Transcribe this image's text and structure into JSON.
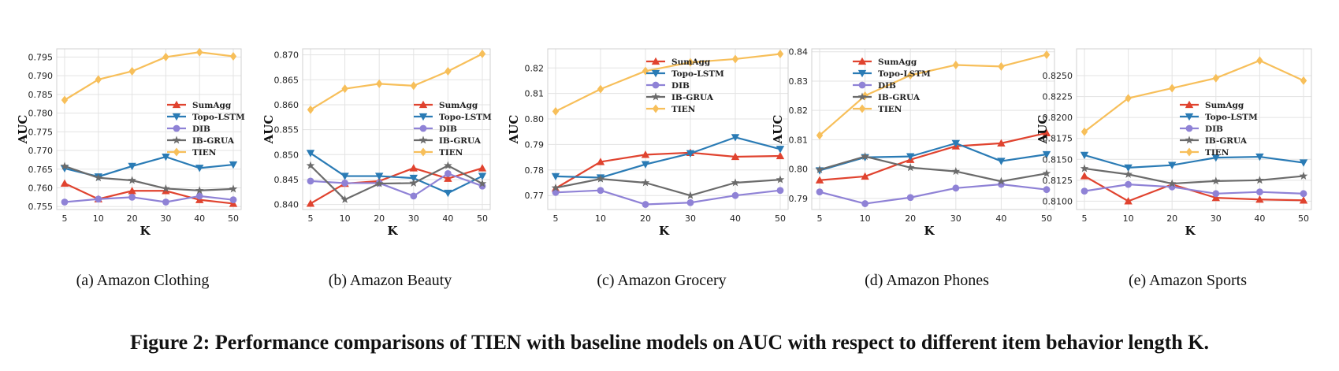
{
  "figure_caption": "Figure 2: Performance comparisons of TIEN with baseline models on AUC with respect to different item behavior length K.",
  "colors": {
    "SumAgg": "#e0432f",
    "Topo-LSTM": "#2a7bb5",
    "DIB": "#8f82d6",
    "IB-GRUA": "#6b6b6b",
    "TIEN": "#f7bf5a"
  },
  "legend_labels": [
    "SumAgg",
    "Topo-LSTM",
    "DIB",
    "IB-GRUA",
    "TIEN"
  ],
  "chart_data": [
    {
      "type": "line",
      "subcaption": "(a)  Amazon Clothing",
      "xlabel": "K",
      "ylabel": "AUC",
      "x": [
        5,
        10,
        20,
        30,
        40,
        50
      ],
      "x_ticks": [
        "5",
        "10",
        "20",
        "30",
        "40",
        "50"
      ],
      "ylim": [
        0.7542,
        0.7972
      ],
      "y_ticks": [
        "0.755",
        "0.760",
        "0.765",
        "0.770",
        "0.775",
        "0.780",
        "0.785",
        "0.790",
        "0.795"
      ],
      "y_tick_values": [
        0.755,
        0.76,
        0.765,
        0.77,
        0.775,
        0.78,
        0.785,
        0.79,
        0.795
      ],
      "legend_position": "center-right",
      "series": [
        {
          "name": "SumAgg",
          "marker": "triangle-up",
          "values": [
            0.7612,
            0.757,
            0.7592,
            0.7592,
            0.7568,
            0.7558
          ]
        },
        {
          "name": "Topo-LSTM",
          "marker": "triangle-down",
          "values": [
            0.7652,
            0.763,
            0.7658,
            0.7683,
            0.7653,
            0.7662
          ]
        },
        {
          "name": "DIB",
          "marker": "circle",
          "values": [
            0.7562,
            0.757,
            0.7575,
            0.7562,
            0.7578,
            0.7568
          ]
        },
        {
          "name": "IB-GRUA",
          "marker": "star",
          "values": [
            0.7658,
            0.7627,
            0.762,
            0.7598,
            0.7593,
            0.7597
          ]
        },
        {
          "name": "TIEN",
          "marker": "diamond",
          "values": [
            0.7835,
            0.789,
            0.7912,
            0.795,
            0.7963,
            0.7952
          ]
        }
      ]
    },
    {
      "type": "line",
      "subcaption": "(b)  Amazon Beauty",
      "xlabel": "K",
      "ylabel": "AUC",
      "x": [
        5,
        10,
        20,
        30,
        40,
        50
      ],
      "x_ticks": [
        "5",
        "10",
        "20",
        "30",
        "40",
        "50"
      ],
      "ylim": [
        0.839,
        0.8712
      ],
      "y_ticks": [
        "0.840",
        "0.845",
        "0.850",
        "0.855",
        "0.860",
        "0.865",
        "0.870"
      ],
      "y_tick_values": [
        0.84,
        0.845,
        0.85,
        0.855,
        0.86,
        0.865,
        0.87
      ],
      "legend_position": "center-right",
      "series": [
        {
          "name": "SumAgg",
          "marker": "triangle-up",
          "values": [
            0.8402,
            0.8442,
            0.8447,
            0.8473,
            0.8452,
            0.8473
          ]
        },
        {
          "name": "Topo-LSTM",
          "marker": "triangle-down",
          "values": [
            0.8503,
            0.8457,
            0.8457,
            0.8453,
            0.8423,
            0.8457
          ]
        },
        {
          "name": "DIB",
          "marker": "circle",
          "values": [
            0.8447,
            0.8443,
            0.8443,
            0.8417,
            0.8462,
            0.8437
          ]
        },
        {
          "name": "IB-GRUA",
          "marker": "star",
          "values": [
            0.8478,
            0.841,
            0.8442,
            0.8443,
            0.8478,
            0.8442
          ]
        },
        {
          "name": "TIEN",
          "marker": "diamond",
          "values": [
            0.859,
            0.8632,
            0.8642,
            0.8638,
            0.8667,
            0.8702
          ]
        }
      ]
    },
    {
      "type": "line",
      "subcaption": "(c)  Amazon Grocery",
      "xlabel": "K",
      "ylabel": "AUC",
      "x": [
        5,
        10,
        20,
        30,
        40,
        50
      ],
      "x_ticks": [
        "5",
        "10",
        "20",
        "30",
        "40",
        "50"
      ],
      "ylim": [
        0.7645,
        0.8275
      ],
      "y_ticks": [
        "0.77",
        "0.78",
        "0.79",
        "0.80",
        "0.81",
        "0.82"
      ],
      "y_tick_values": [
        0.77,
        0.78,
        0.79,
        0.8,
        0.81,
        0.82
      ],
      "legend_position": "top-center",
      "series": [
        {
          "name": "SumAgg",
          "marker": "triangle-up",
          "values": [
            0.7728,
            0.7832,
            0.786,
            0.7868,
            0.7852,
            0.7855
          ]
        },
        {
          "name": "Topo-LSTM",
          "marker": "triangle-down",
          "values": [
            0.7775,
            0.777,
            0.7822,
            0.7865,
            0.7928,
            0.7882
          ]
        },
        {
          "name": "DIB",
          "marker": "circle",
          "values": [
            0.7712,
            0.772,
            0.7665,
            0.7672,
            0.77,
            0.772
          ]
        },
        {
          "name": "IB-GRUA",
          "marker": "star",
          "values": [
            0.773,
            0.7765,
            0.775,
            0.77,
            0.775,
            0.7762
          ]
        },
        {
          "name": "TIEN",
          "marker": "diamond",
          "values": [
            0.803,
            0.8117,
            0.8188,
            0.8222,
            0.8235,
            0.8255
          ]
        }
      ]
    },
    {
      "type": "line",
      "subcaption": "(d)  Amazon Phones",
      "xlabel": "K",
      "ylabel": "AUC",
      "x": [
        5,
        10,
        20,
        30,
        40,
        50
      ],
      "x_ticks": [
        "5",
        "10",
        "20",
        "30",
        "40",
        "50"
      ],
      "ylim": [
        0.7862,
        0.841
      ],
      "y_ticks": [
        "0.79",
        "0.80",
        "0.81",
        "0.82",
        "0.83",
        "0.84"
      ],
      "y_tick_values": [
        0.79,
        0.8,
        0.81,
        0.82,
        0.83,
        0.84
      ],
      "legend_position": "top-left",
      "series": [
        {
          "name": "SumAgg",
          "marker": "triangle-up",
          "values": [
            0.7962,
            0.7975,
            0.8032,
            0.8078,
            0.8088,
            0.8123
          ]
        },
        {
          "name": "Topo-LSTM",
          "marker": "triangle-down",
          "values": [
            0.7995,
            0.804,
            0.8043,
            0.8088,
            0.8027,
            0.805
          ]
        },
        {
          "name": "DIB",
          "marker": "circle",
          "values": [
            0.7922,
            0.7882,
            0.7903,
            0.7935,
            0.7948,
            0.793
          ]
        },
        {
          "name": "IB-GRUA",
          "marker": "star",
          "values": [
            0.7998,
            0.8043,
            0.8005,
            0.7992,
            0.7958,
            0.7985
          ]
        },
        {
          "name": "TIEN",
          "marker": "diamond",
          "values": [
            0.8115,
            0.825,
            0.832,
            0.8355,
            0.835,
            0.839
          ]
        }
      ]
    },
    {
      "type": "line",
      "subcaption": "(e)  Amazon Sports",
      "xlabel": "K",
      "ylabel": "AUC",
      "x": [
        5,
        10,
        20,
        30,
        40,
        50
      ],
      "x_ticks": [
        "5",
        "10",
        "20",
        "30",
        "40",
        "50"
      ],
      "ylim": [
        0.809,
        0.8282
      ],
      "y_ticks": [
        "0.8100",
        "0.8125",
        "0.8150",
        "0.8175",
        "0.8200",
        "0.8225",
        "0.8250"
      ],
      "y_tick_values": [
        0.81,
        0.8125,
        0.815,
        0.8175,
        0.82,
        0.8225,
        0.825
      ],
      "legend_position": "center-left",
      "series": [
        {
          "name": "SumAgg",
          "marker": "triangle-up",
          "values": [
            0.813,
            0.81,
            0.812,
            0.8104,
            0.8102,
            0.8101
          ]
        },
        {
          "name": "Topo-LSTM",
          "marker": "triangle-down",
          "values": [
            0.8155,
            0.814,
            0.8143,
            0.8152,
            0.8153,
            0.8146
          ]
        },
        {
          "name": "DIB",
          "marker": "circle",
          "values": [
            0.8112,
            0.812,
            0.8117,
            0.8109,
            0.8111,
            0.8109
          ]
        },
        {
          "name": "IB-GRUA",
          "marker": "star",
          "values": [
            0.8139,
            0.8132,
            0.8121,
            0.8124,
            0.8125,
            0.813
          ]
        },
        {
          "name": "TIEN",
          "marker": "diamond",
          "values": [
            0.8183,
            0.8223,
            0.8235,
            0.8247,
            0.8268,
            0.8244
          ]
        }
      ]
    }
  ]
}
